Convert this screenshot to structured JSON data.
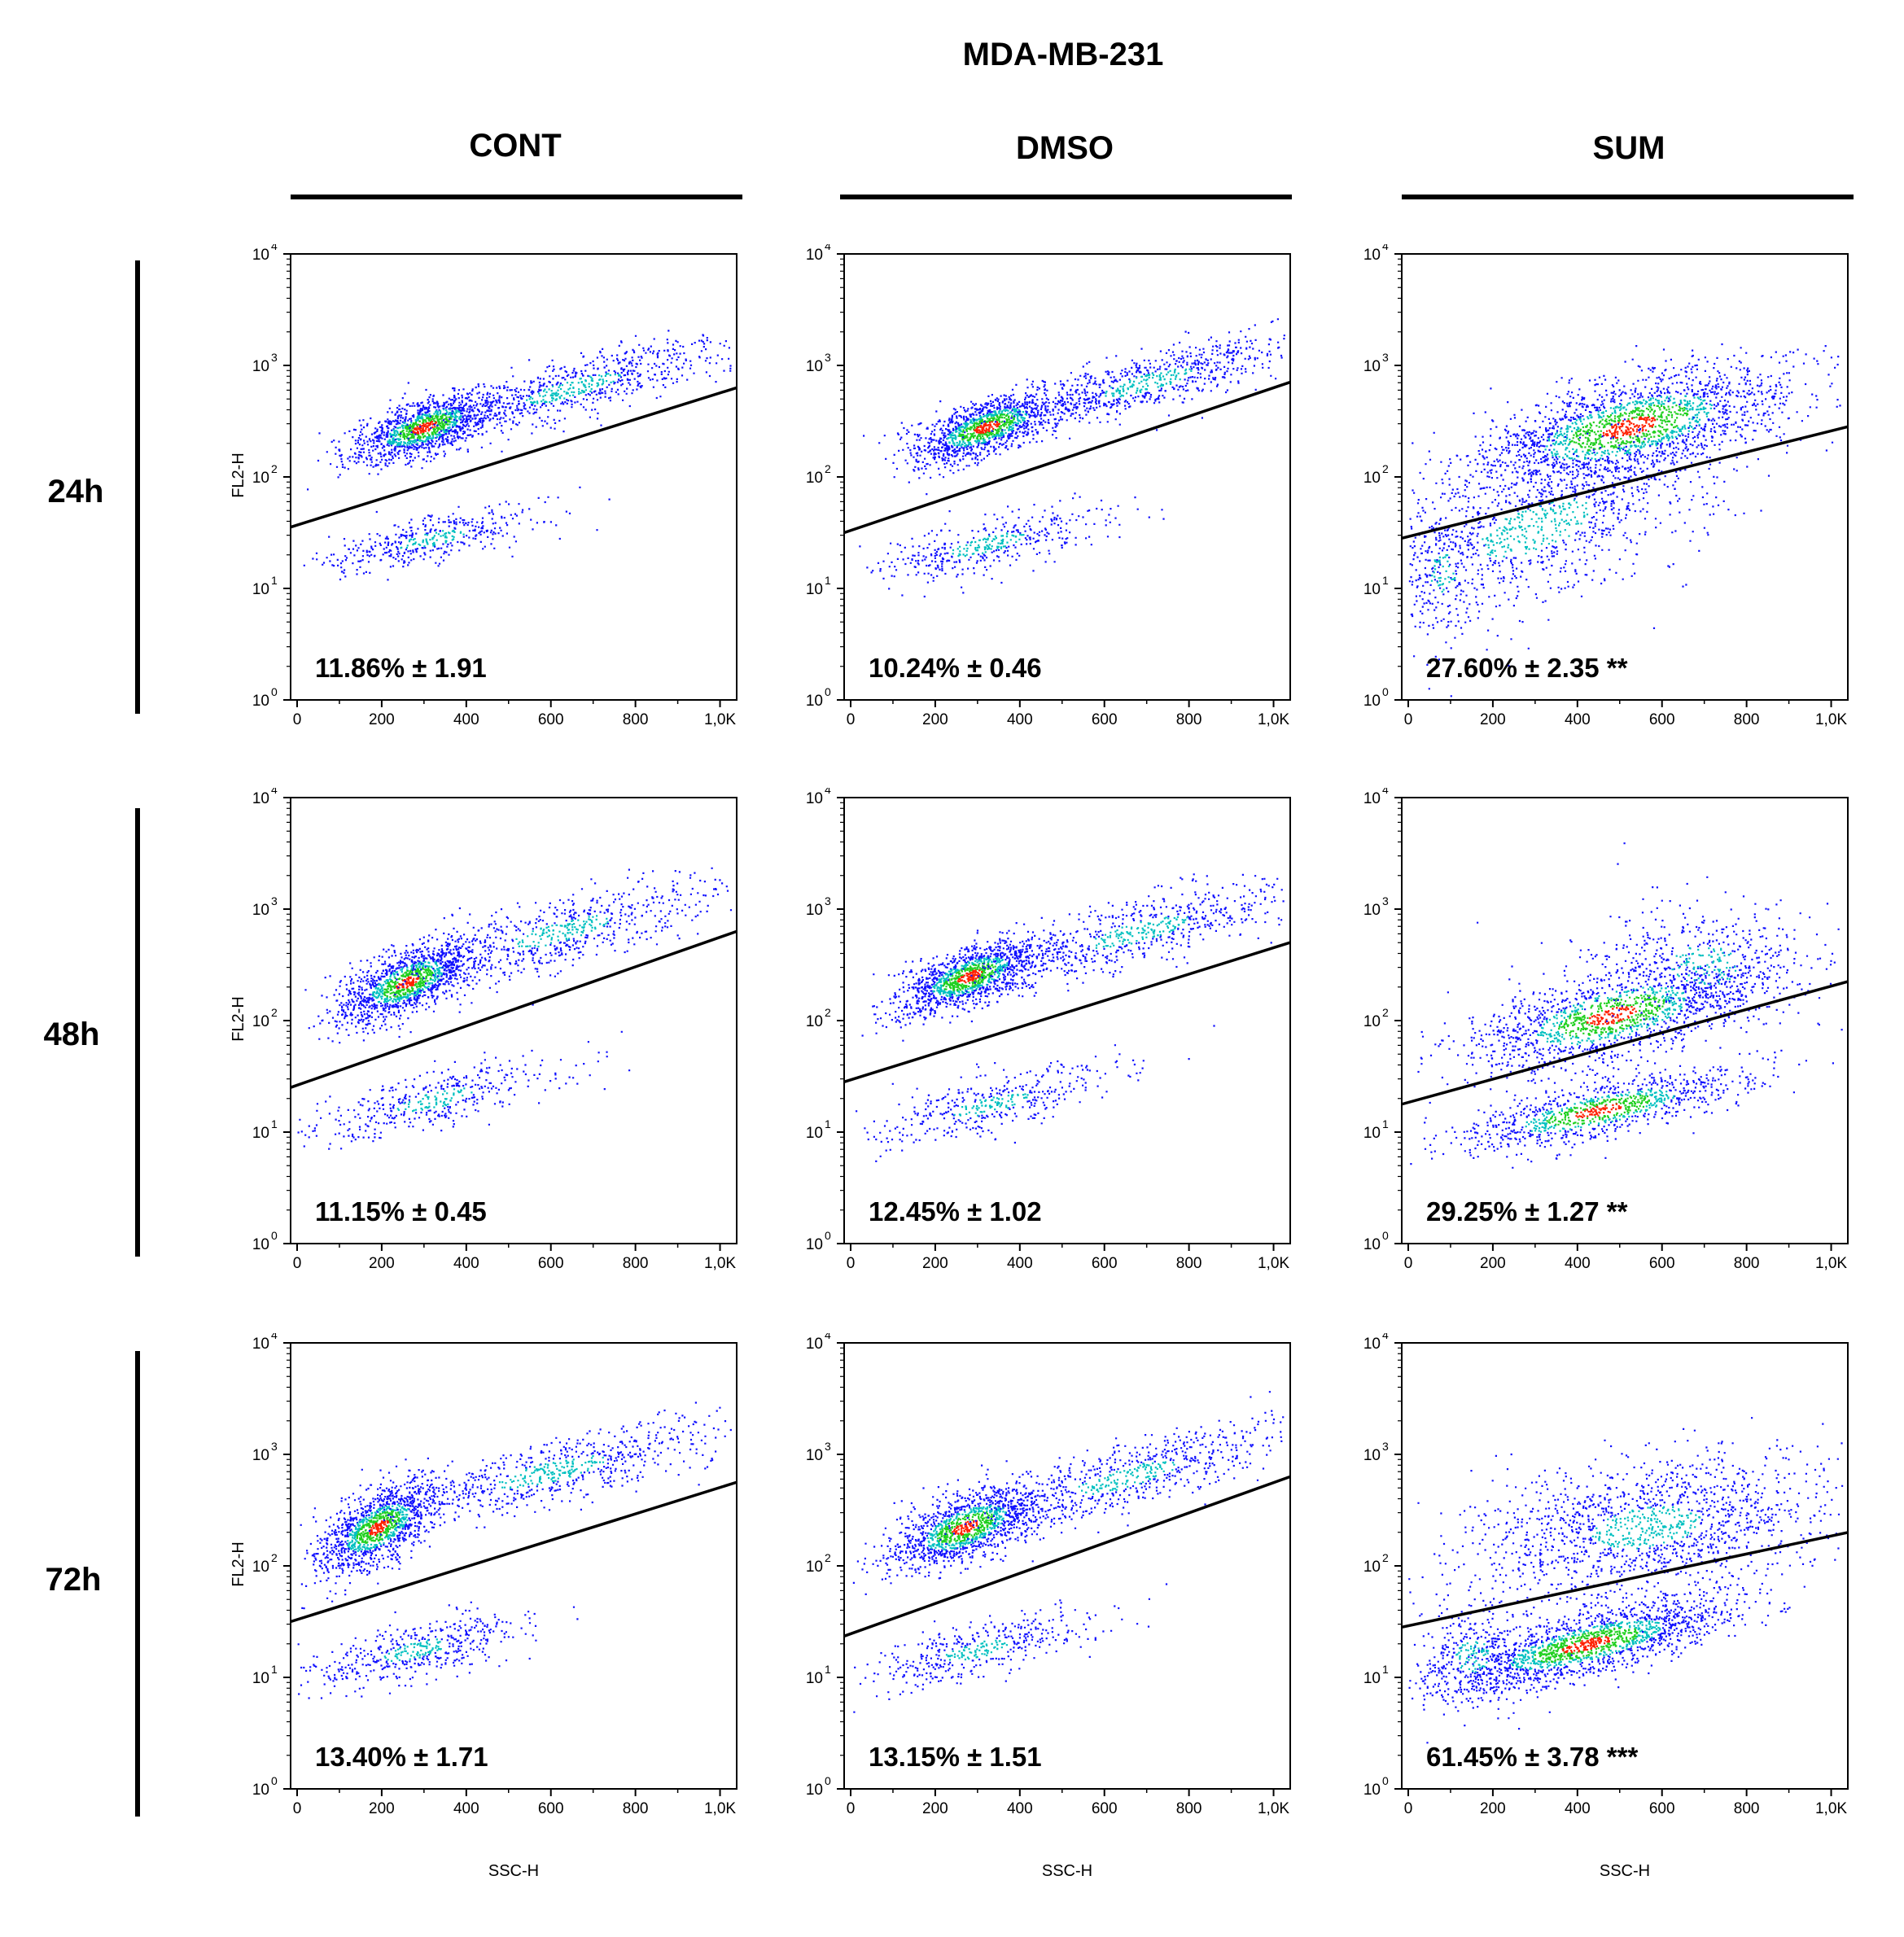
{
  "chart_data": {
    "type": "scatter",
    "title": "MDA-MB-231",
    "xlabel": "SSC-H",
    "ylabel": "FL2-H",
    "xlim": [
      0,
      1024
    ],
    "ylim_log10": [
      0,
      4
    ],
    "columns": [
      "CONT",
      "DMSO",
      "SUM"
    ],
    "rows": [
      "24h",
      "48h",
      "72h"
    ],
    "x_ticks": [
      "0",
      "200",
      "400",
      "600",
      "800",
      "1,0K"
    ],
    "x_tick_values": [
      0,
      200,
      400,
      600,
      800,
      1000
    ],
    "y_ticks": [
      {
        "base": "10",
        "exp": "0",
        "value": 0
      },
      {
        "base": "10",
        "exp": "1",
        "value": 1
      },
      {
        "base": "10",
        "exp": "2",
        "value": 2
      },
      {
        "base": "10",
        "exp": "3",
        "value": 3
      },
      {
        "base": "10",
        "exp": "4",
        "value": 4
      }
    ],
    "panels": [
      {
        "row": "24h",
        "column": "CONT",
        "label": "11.86% ± 1.91",
        "gate_start_log10": 1.55,
        "gate_end_log10": 2.8,
        "clusters": [
          {
            "cx": 300,
            "cy": 2.45,
            "sx": 85,
            "sy": 0.12,
            "n": 1300,
            "slope": 0.0012,
            "hot": true
          },
          {
            "cx": 650,
            "cy": 2.8,
            "sx": 190,
            "sy": 0.13,
            "n": 750,
            "slope": 0.001,
            "hot": false
          },
          {
            "cx": 320,
            "cy": 1.45,
            "sx": 140,
            "sy": 0.1,
            "n": 420,
            "slope": 0.0008,
            "hot": false
          }
        ]
      },
      {
        "row": "24h",
        "column": "DMSO",
        "label": "10.24% ± 0.46",
        "gate_start_log10": 1.5,
        "gate_end_log10": 2.85,
        "clusters": [
          {
            "cx": 320,
            "cy": 2.45,
            "sx": 90,
            "sy": 0.12,
            "n": 1300,
            "slope": 0.0012,
            "hot": true
          },
          {
            "cx": 700,
            "cy": 2.85,
            "sx": 180,
            "sy": 0.13,
            "n": 750,
            "slope": 0.001,
            "hot": false
          },
          {
            "cx": 320,
            "cy": 1.4,
            "sx": 150,
            "sy": 0.12,
            "n": 420,
            "slope": 0.0009,
            "hot": false
          }
        ]
      },
      {
        "row": "24h",
        "column": "SUM",
        "label": "27.60% ± 2.35 **",
        "gate_start_log10": 1.45,
        "gate_end_log10": 2.45,
        "clusters": [
          {
            "cx": 520,
            "cy": 2.45,
            "sx": 190,
            "sy": 0.22,
            "n": 2000,
            "slope": 0.0009,
            "hot": true
          },
          {
            "cx": 300,
            "cy": 1.55,
            "sx": 230,
            "sy": 0.35,
            "n": 1100,
            "slope": 0.0012,
            "hot": false
          },
          {
            "cx": 80,
            "cy": 1.15,
            "sx": 50,
            "sy": 0.3,
            "n": 220,
            "slope": 0,
            "hot": false
          }
        ]
      },
      {
        "row": "48h",
        "column": "CONT",
        "label": "11.15% ± 0.45",
        "gate_start_log10": 1.4,
        "gate_end_log10": 2.8,
        "clusters": [
          {
            "cx": 260,
            "cy": 2.35,
            "sx": 80,
            "sy": 0.14,
            "n": 1300,
            "slope": 0.0014,
            "hot": true
          },
          {
            "cx": 620,
            "cy": 2.8,
            "sx": 200,
            "sy": 0.15,
            "n": 700,
            "slope": 0.001,
            "hot": false
          },
          {
            "cx": 330,
            "cy": 1.3,
            "sx": 160,
            "sy": 0.12,
            "n": 420,
            "slope": 0.0009,
            "hot": false
          }
        ]
      },
      {
        "row": "48h",
        "column": "DMSO",
        "label": "12.45% ± 1.02",
        "gate_start_log10": 1.45,
        "gate_end_log10": 2.7,
        "clusters": [
          {
            "cx": 280,
            "cy": 2.4,
            "sx": 85,
            "sy": 0.13,
            "n": 1300,
            "slope": 0.0013,
            "hot": true
          },
          {
            "cx": 680,
            "cy": 2.8,
            "sx": 200,
            "sy": 0.15,
            "n": 700,
            "slope": 0.001,
            "hot": false
          },
          {
            "cx": 330,
            "cy": 1.25,
            "sx": 150,
            "sy": 0.12,
            "n": 420,
            "slope": 0.0009,
            "hot": false
          }
        ]
      },
      {
        "row": "48h",
        "column": "SUM",
        "label": "29.25% ± 1.27 **",
        "gate_start_log10": 1.25,
        "gate_end_log10": 2.35,
        "clusters": [
          {
            "cx": 480,
            "cy": 2.05,
            "sx": 170,
            "sy": 0.2,
            "n": 1500,
            "slope": 0.0009,
            "hot": true
          },
          {
            "cx": 450,
            "cy": 1.2,
            "sx": 170,
            "sy": 0.12,
            "n": 1000,
            "slope": 0.0008,
            "hot": true
          },
          {
            "cx": 700,
            "cy": 2.5,
            "sx": 140,
            "sy": 0.3,
            "n": 500,
            "slope": 0,
            "hot": false
          }
        ]
      },
      {
        "row": "72h",
        "column": "CONT",
        "label": "13.40% ± 1.71",
        "gate_start_log10": 1.5,
        "gate_end_log10": 2.75,
        "clusters": [
          {
            "cx": 190,
            "cy": 2.35,
            "sx": 70,
            "sy": 0.16,
            "n": 1300,
            "slope": 0.0018,
            "hot": true
          },
          {
            "cx": 600,
            "cy": 2.85,
            "sx": 220,
            "sy": 0.15,
            "n": 700,
            "slope": 0.0009,
            "hot": false
          },
          {
            "cx": 280,
            "cy": 1.25,
            "sx": 130,
            "sy": 0.12,
            "n": 480,
            "slope": 0.0009,
            "hot": false
          }
        ]
      },
      {
        "row": "72h",
        "column": "DMSO",
        "label": "13.15% ± 1.51",
        "gate_start_log10": 1.37,
        "gate_end_log10": 2.8,
        "clusters": [
          {
            "cx": 270,
            "cy": 2.35,
            "sx": 90,
            "sy": 0.15,
            "n": 1300,
            "slope": 0.0013,
            "hot": true
          },
          {
            "cx": 650,
            "cy": 2.8,
            "sx": 210,
            "sy": 0.15,
            "n": 700,
            "slope": 0.001,
            "hot": false
          },
          {
            "cx": 300,
            "cy": 1.25,
            "sx": 140,
            "sy": 0.12,
            "n": 420,
            "slope": 0.0009,
            "hot": false
          }
        ]
      },
      {
        "row": "72h",
        "column": "SUM",
        "label": "61.45% ± 3.78 ***",
        "gate_start_log10": 1.45,
        "gate_end_log10": 2.3,
        "clusters": [
          {
            "cx": 420,
            "cy": 1.3,
            "sx": 170,
            "sy": 0.14,
            "n": 1700,
            "slope": 0.0009,
            "hot": true
          },
          {
            "cx": 560,
            "cy": 2.35,
            "sx": 220,
            "sy": 0.3,
            "n": 1500,
            "slope": 0.0005,
            "hot": false
          },
          {
            "cx": 150,
            "cy": 1.2,
            "sx": 70,
            "sy": 0.25,
            "n": 300,
            "slope": 0,
            "hot": false
          }
        ]
      }
    ],
    "colors": {
      "low": "#1010ff",
      "mid": "#00c0c0",
      "high": "#20d020",
      "peak": "#ff2000",
      "gate": "#000000"
    }
  }
}
